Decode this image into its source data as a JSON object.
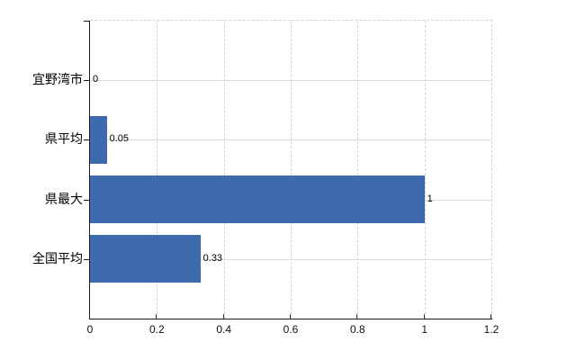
{
  "chart": {
    "background_color": "#ffffff",
    "bar_color": "#3d6bae",
    "axis_color": "#1a1a1a",
    "gridline_color": "#d6d3d6",
    "text_color": "#000000"
  },
  "chart_data": {
    "type": "bar",
    "orientation": "horizontal",
    "categories": [
      "宜野湾市",
      "県平均",
      "県最大",
      "全国平均"
    ],
    "values": [
      0,
      0.05,
      1,
      0.33
    ],
    "value_labels": [
      "0",
      "0.05",
      "1",
      "0.33"
    ],
    "xlim": [
      0,
      1.2
    ],
    "xticks": [
      0,
      0.2,
      0.4,
      0.6,
      0.8,
      1,
      1.2
    ],
    "xtick_labels": [
      "0",
      "0.2",
      "0.4",
      "0.6",
      "0.8",
      "1",
      "1.2"
    ],
    "grid": true,
    "grid_vertical_style": "dashed",
    "grid_horizontal_style": "solid",
    "legend": "none"
  }
}
